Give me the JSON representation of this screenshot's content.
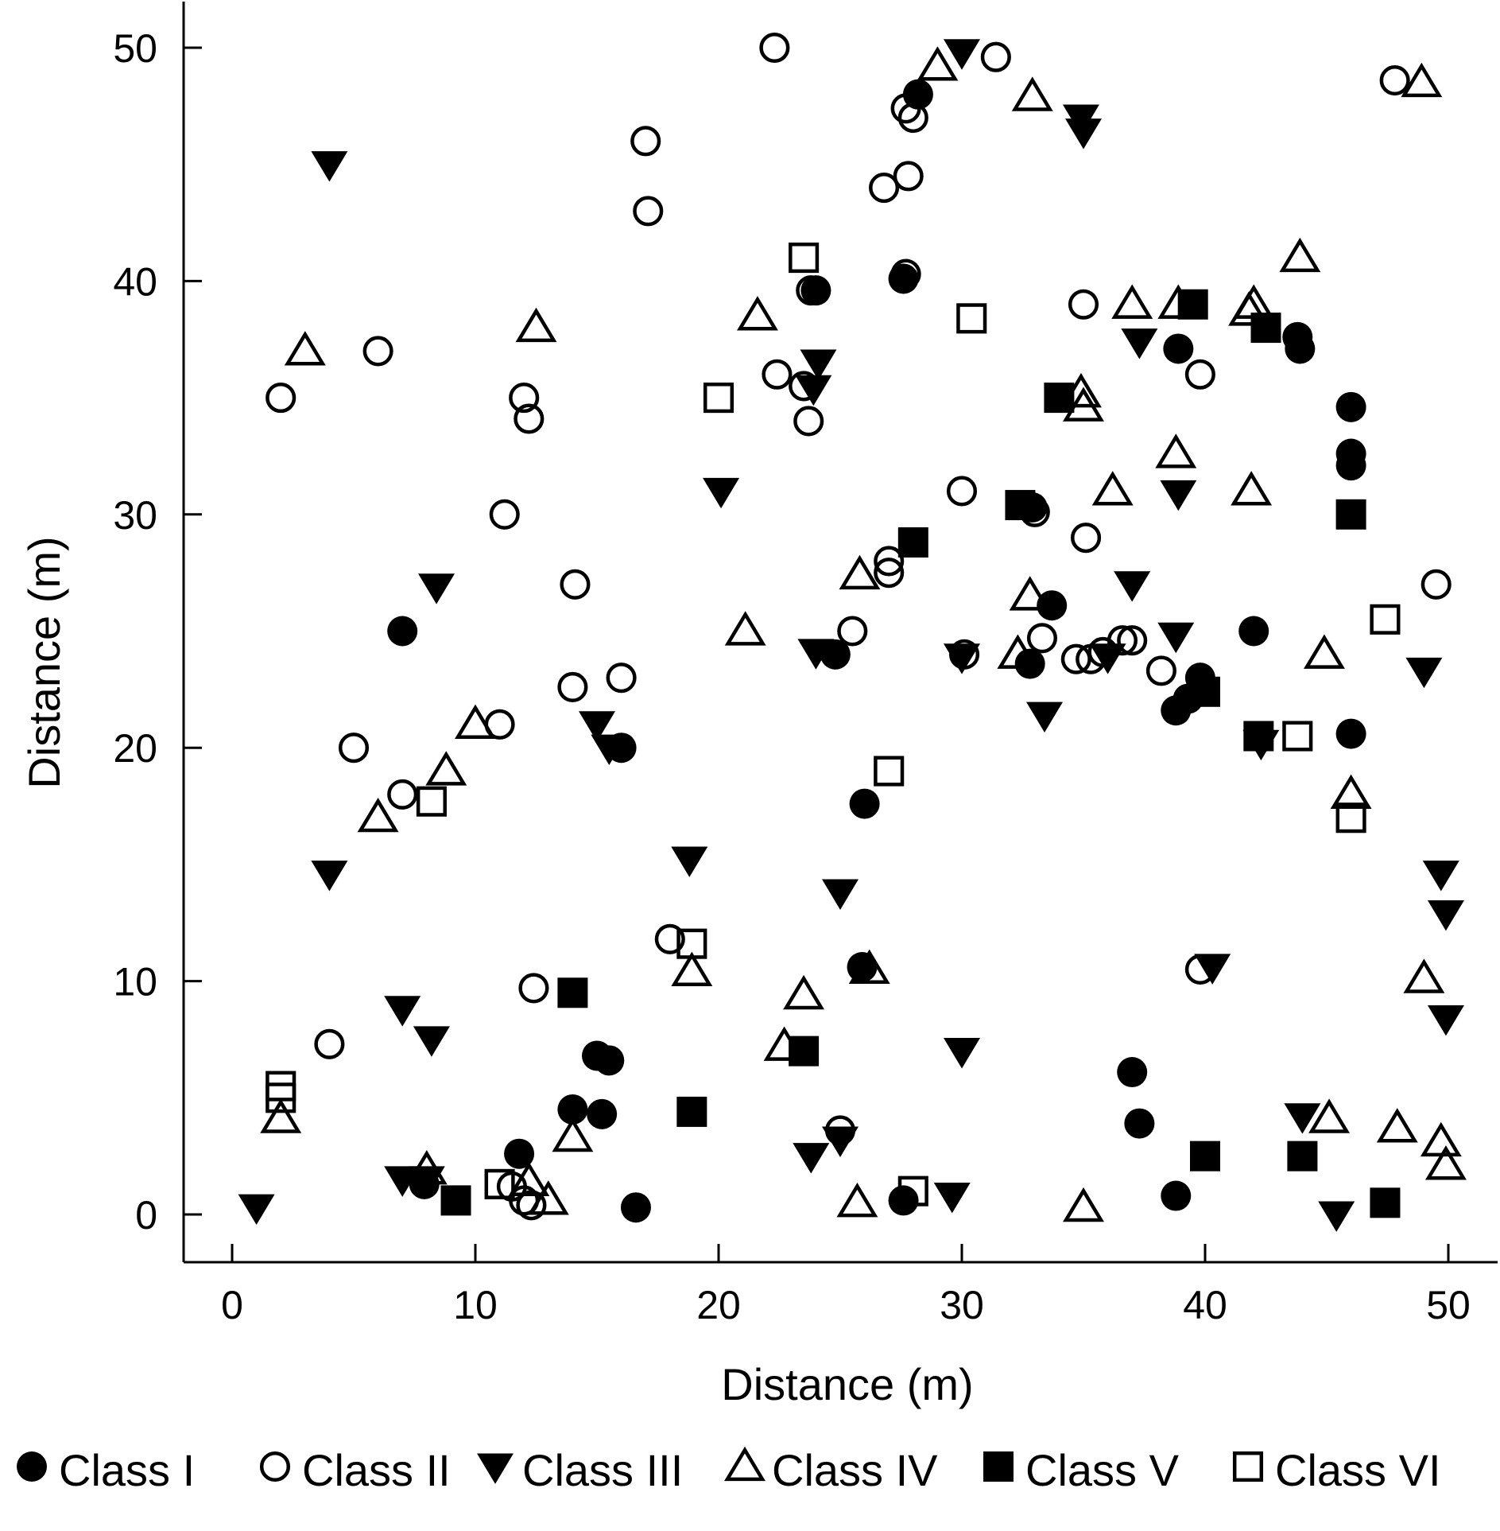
{
  "chart_data": {
    "type": "scatter",
    "xlabel": "Distance (m)",
    "ylabel": "Distance (m)",
    "xlim": [
      -2,
      52
    ],
    "ylim": [
      -2,
      52
    ],
    "xticks": [
      0,
      10,
      20,
      30,
      40,
      50
    ],
    "yticks": [
      0,
      10,
      20,
      30,
      40,
      50
    ],
    "grid": false,
    "legend_position": "bottom",
    "series": [
      {
        "name": "Class I",
        "marker": "filled-circle",
        "points": [
          [
            7,
            25
          ],
          [
            16,
            20
          ],
          [
            14,
            4.5
          ],
          [
            15.2,
            4.3
          ],
          [
            15,
            6.8
          ],
          [
            15.5,
            6.6
          ],
          [
            11.8,
            2.6
          ],
          [
            7.9,
            1.3
          ],
          [
            16.6,
            0.3
          ],
          [
            24.8,
            24
          ],
          [
            26,
            17.6
          ],
          [
            25.9,
            10.6
          ],
          [
            24,
            39.6
          ],
          [
            27.6,
            40.1
          ],
          [
            28.2,
            48
          ],
          [
            32.8,
            23.6
          ],
          [
            33.7,
            26.1
          ],
          [
            32.9,
            30.3
          ],
          [
            37,
            6.1
          ],
          [
            37.3,
            3.9
          ],
          [
            38.8,
            21.6
          ],
          [
            39.3,
            22.1
          ],
          [
            39.8,
            23
          ],
          [
            38.8,
            0.8
          ],
          [
            38.9,
            37.1
          ],
          [
            42,
            25
          ],
          [
            43.8,
            37.6
          ],
          [
            43.9,
            37.1
          ],
          [
            46,
            34.6
          ],
          [
            46,
            32.6
          ],
          [
            46,
            32.1
          ],
          [
            46,
            20.6
          ],
          [
            27.6,
            0.6
          ]
        ]
      },
      {
        "name": "Class II",
        "marker": "open-circle",
        "points": [
          [
            2,
            35
          ],
          [
            6,
            37
          ],
          [
            5,
            20
          ],
          [
            7,
            18
          ],
          [
            4,
            7.3
          ],
          [
            11,
            21
          ],
          [
            11.2,
            30
          ],
          [
            12,
            35
          ],
          [
            12.2,
            34.1
          ],
          [
            12.4,
            9.7
          ],
          [
            14,
            22.6
          ],
          [
            14.1,
            27
          ],
          [
            16,
            23
          ],
          [
            17,
            46
          ],
          [
            17.1,
            43
          ],
          [
            18,
            11.8
          ],
          [
            22.3,
            50
          ],
          [
            22.4,
            36
          ],
          [
            23.5,
            35.5
          ],
          [
            23.7,
            34
          ],
          [
            23.8,
            39.6
          ],
          [
            25,
            3.6
          ],
          [
            25.5,
            25
          ],
          [
            26.8,
            44
          ],
          [
            27,
            28
          ],
          [
            27,
            27.5
          ],
          [
            27.7,
            47.4
          ],
          [
            28,
            47
          ],
          [
            27.8,
            44.5
          ],
          [
            27.7,
            40.3
          ],
          [
            30,
            31
          ],
          [
            30.1,
            24
          ],
          [
            31.4,
            49.6
          ],
          [
            33,
            30.1
          ],
          [
            33.3,
            24.7
          ],
          [
            34.7,
            23.8
          ],
          [
            35,
            39
          ],
          [
            35.1,
            29
          ],
          [
            35.3,
            23.8
          ],
          [
            35.8,
            24.1
          ],
          [
            36.6,
            24.6
          ],
          [
            37,
            24.6
          ],
          [
            38.2,
            23.3
          ],
          [
            39.8,
            36
          ],
          [
            39.8,
            10.5
          ],
          [
            47.8,
            48.6
          ],
          [
            49.5,
            27
          ],
          [
            11.5,
            1.2
          ],
          [
            12,
            0.6
          ],
          [
            12.3,
            0.4
          ]
        ]
      },
      {
        "name": "Class III",
        "marker": "filled-triangle-down",
        "points": [
          [
            1,
            0.3
          ],
          [
            4,
            45
          ],
          [
            4,
            14.6
          ],
          [
            7,
            8.8
          ],
          [
            7,
            1.5
          ],
          [
            8,
            1.5
          ],
          [
            8.2,
            7.5
          ],
          [
            8.4,
            26.9
          ],
          [
            15,
            21
          ],
          [
            15.5,
            20
          ],
          [
            18.8,
            15.2
          ],
          [
            20.1,
            31
          ],
          [
            23.8,
            2.5
          ],
          [
            23.9,
            35.4
          ],
          [
            24,
            24.1
          ],
          [
            24.1,
            36.5
          ],
          [
            25,
            13.8
          ],
          [
            25,
            3.2
          ],
          [
            30,
            49.8
          ],
          [
            30,
            23.9
          ],
          [
            30,
            7
          ],
          [
            29.6,
            0.8
          ],
          [
            33.4,
            21.4
          ],
          [
            34.9,
            47
          ],
          [
            35,
            46.4
          ],
          [
            36,
            23.9
          ],
          [
            37,
            27
          ],
          [
            37.3,
            37.4
          ],
          [
            38.8,
            24.8
          ],
          [
            38.9,
            30.9
          ],
          [
            40.3,
            10.6
          ],
          [
            42.3,
            20.2
          ],
          [
            44,
            4.2
          ],
          [
            45.4,
            0
          ],
          [
            49,
            23.3
          ],
          [
            49.7,
            14.6
          ],
          [
            49.9,
            12.9
          ],
          [
            49.9,
            8.4
          ]
        ]
      },
      {
        "name": "Class IV",
        "marker": "open-triangle-up",
        "points": [
          [
            2,
            4.1
          ],
          [
            3,
            37
          ],
          [
            6,
            17
          ],
          [
            8,
            1.9
          ],
          [
            8.8,
            19
          ],
          [
            10,
            21
          ],
          [
            12.5,
            38
          ],
          [
            12.2,
            1.4
          ],
          [
            13,
            0.6
          ],
          [
            14,
            3.3
          ],
          [
            18.9,
            10.4
          ],
          [
            21.1,
            25
          ],
          [
            21.6,
            38.5
          ],
          [
            22.7,
            7.2
          ],
          [
            23.5,
            9.4
          ],
          [
            25.8,
            27.4
          ],
          [
            25.7,
            0.5
          ],
          [
            26.2,
            10.5
          ],
          [
            29,
            49.2
          ],
          [
            32.3,
            24
          ],
          [
            32.8,
            26.5
          ],
          [
            32.9,
            47.9
          ],
          [
            34.9,
            35.2
          ],
          [
            35,
            34.6
          ],
          [
            35,
            0.3
          ],
          [
            36.2,
            31
          ],
          [
            37,
            39
          ],
          [
            38.8,
            32.6
          ],
          [
            38.9,
            39
          ],
          [
            41.8,
            38.7
          ],
          [
            41.9,
            31
          ],
          [
            42,
            39
          ],
          [
            43.9,
            41
          ],
          [
            44.9,
            24
          ],
          [
            45.1,
            4.1
          ],
          [
            46,
            18
          ],
          [
            47.9,
            3.7
          ],
          [
            49,
            10.1
          ],
          [
            49.7,
            3.1
          ],
          [
            49.9,
            2.1
          ],
          [
            48.9,
            48.5
          ]
        ]
      },
      {
        "name": "Class V",
        "marker": "filled-square",
        "points": [
          [
            9.2,
            0.6
          ],
          [
            14,
            9.5
          ],
          [
            18.9,
            4.4
          ],
          [
            23.5,
            7
          ],
          [
            28,
            28.8
          ],
          [
            32.4,
            30.4
          ],
          [
            34,
            35
          ],
          [
            39.5,
            39
          ],
          [
            40,
            22.4
          ],
          [
            40,
            2.5
          ],
          [
            42.2,
            20.5
          ],
          [
            42.5,
            38
          ],
          [
            44,
            2.5
          ],
          [
            46,
            30
          ],
          [
            47.4,
            0.5
          ]
        ]
      },
      {
        "name": "Class VI",
        "marker": "open-square",
        "points": [
          [
            2,
            5.5
          ],
          [
            2,
            5
          ],
          [
            8.2,
            17.7
          ],
          [
            11,
            1.3
          ],
          [
            18.9,
            11.6
          ],
          [
            20,
            35
          ],
          [
            23.5,
            41
          ],
          [
            27,
            19
          ],
          [
            28,
            1
          ],
          [
            30.4,
            38.4
          ],
          [
            43.8,
            20.5
          ],
          [
            46,
            17
          ],
          [
            47.4,
            25.5
          ]
        ]
      }
    ]
  },
  "legend": {
    "items": [
      {
        "label": "Class I",
        "marker": "filled-circle"
      },
      {
        "label": "Class II",
        "marker": "open-circle"
      },
      {
        "label": "Class III",
        "marker": "filled-triangle-down"
      },
      {
        "label": "Class IV",
        "marker": "open-triangle-up"
      },
      {
        "label": "Class V",
        "marker": "filled-square"
      },
      {
        "label": "Class VI",
        "marker": "open-square"
      }
    ]
  }
}
